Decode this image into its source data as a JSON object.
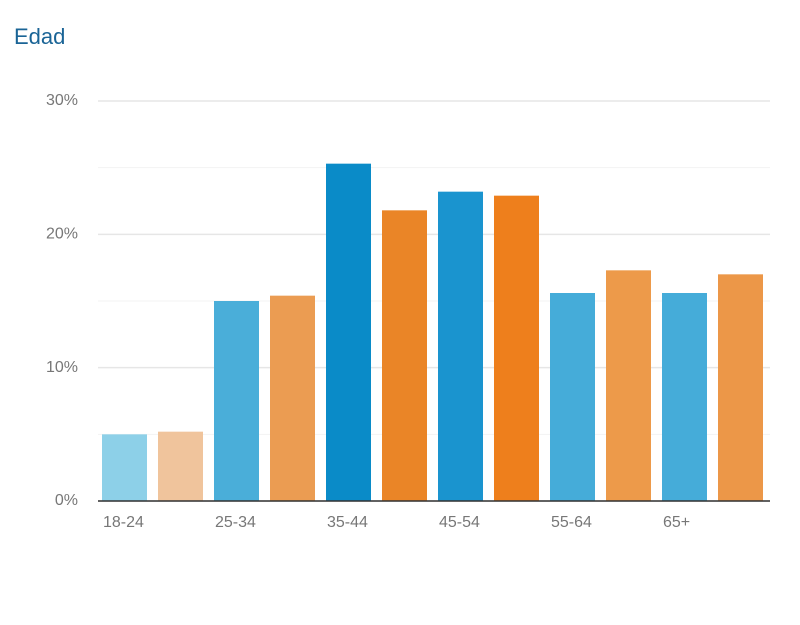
{
  "chart_data": {
    "type": "bar",
    "title": "Edad",
    "categories": [
      "18-24",
      "25-34",
      "35-44",
      "45-54",
      "55-64",
      "65+"
    ],
    "series": [
      {
        "colors": [
          "#8dd0e8",
          "#4aaed9",
          "#0a8bc8",
          "#1a94cf",
          "#45acd9",
          "#45acd9"
        ],
        "values": [
          5.0,
          15.0,
          25.3,
          23.2,
          15.6,
          15.6
        ]
      },
      {
        "colors": [
          "#f0c49c",
          "#eb9c52",
          "#ea8527",
          "#ee7f1c",
          "#ed9a4a",
          "#ec9748"
        ],
        "values": [
          5.2,
          15.4,
          21.8,
          22.9,
          17.3,
          17.0
        ]
      }
    ],
    "ylim": [
      0,
      30
    ],
    "yticks": [
      {
        "value": 0,
        "label": "0%"
      },
      {
        "value": 10,
        "label": "10%"
      },
      {
        "value": 20,
        "label": "20%"
      },
      {
        "value": 30,
        "label": "30%"
      }
    ],
    "minor_yticks": [
      5,
      15,
      25
    ],
    "grid": true
  }
}
